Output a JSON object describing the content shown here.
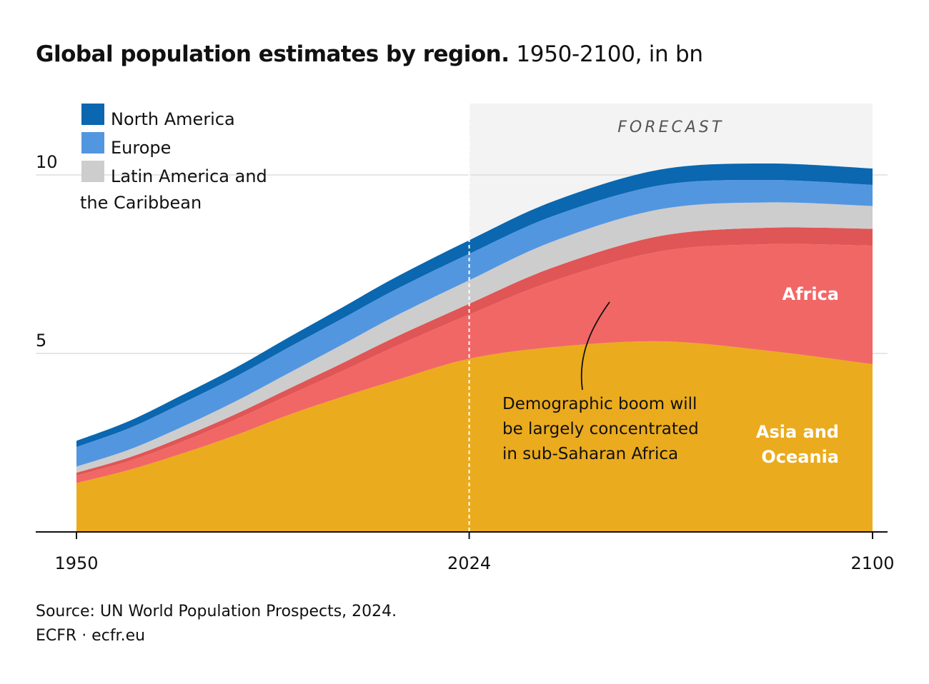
{
  "title_bold": "Global population estimates by region.",
  "title_rest": "1950-2100, in bn",
  "source_line": "Source: UN World Population Prospects, 2024.",
  "credit_line": "ECFR · ecfr.eu",
  "forecast_label": "FORECAST",
  "annotation": [
    "Demographic boom will",
    "be largely concentrated",
    "in sub-Saharan Africa"
  ],
  "region_labels": {
    "africa": "Africa",
    "asia": [
      "Asia and",
      "Oceania"
    ]
  },
  "legend": [
    {
      "lines": [
        "North America"
      ],
      "color": "#0a67b0"
    },
    {
      "lines": [
        "Europe"
      ],
      "color": "#5396e0"
    },
    {
      "lines": [
        "Latin America and",
        "the Caribbean"
      ],
      "color": "#cdcdcd"
    }
  ],
  "chart_data": {
    "type": "area",
    "stacked": true,
    "x": [
      1950,
      1960,
      1970,
      1980,
      1990,
      2000,
      2010,
      2024,
      2040,
      2060,
      2080,
      2100
    ],
    "xticks": [
      1950,
      2024,
      2100
    ],
    "yticks": [
      5,
      10
    ],
    "ylim": [
      0,
      12
    ],
    "forecast_start": 2024,
    "grid": true,
    "legend_position": "top-left",
    "series": [
      {
        "name": "Asia and Oceania",
        "color": "#ebab1e",
        "values": [
          1.37,
          1.74,
          2.2,
          2.71,
          3.28,
          3.78,
          4.24,
          4.85,
          5.18,
          5.34,
          5.08,
          4.7
        ]
      },
      {
        "name": "Africa",
        "color": "#f16766",
        "values": [
          0.21,
          0.25,
          0.33,
          0.44,
          0.55,
          0.72,
          0.95,
          1.24,
          1.86,
          2.52,
          2.98,
          3.32
        ]
      },
      {
        "color": "#e05555",
        "values": [
          0.08,
          0.1,
          0.13,
          0.15,
          0.18,
          0.22,
          0.26,
          0.3,
          0.38,
          0.43,
          0.46,
          0.47
        ]
      },
      {
        "name": "Latin America and the Caribbean",
        "color": "#cdcdcd",
        "values": [
          0.17,
          0.22,
          0.29,
          0.36,
          0.44,
          0.52,
          0.59,
          0.66,
          0.73,
          0.75,
          0.71,
          0.64
        ]
      },
      {
        "name": "Europe",
        "color": "#5396e0",
        "values": [
          0.55,
          0.6,
          0.66,
          0.69,
          0.72,
          0.73,
          0.74,
          0.74,
          0.71,
          0.67,
          0.63,
          0.59
        ]
      },
      {
        "name": "North America",
        "color": "#0a67b0",
        "values": [
          0.17,
          0.2,
          0.23,
          0.25,
          0.28,
          0.31,
          0.34,
          0.38,
          0.41,
          0.44,
          0.46,
          0.46
        ]
      }
    ]
  }
}
